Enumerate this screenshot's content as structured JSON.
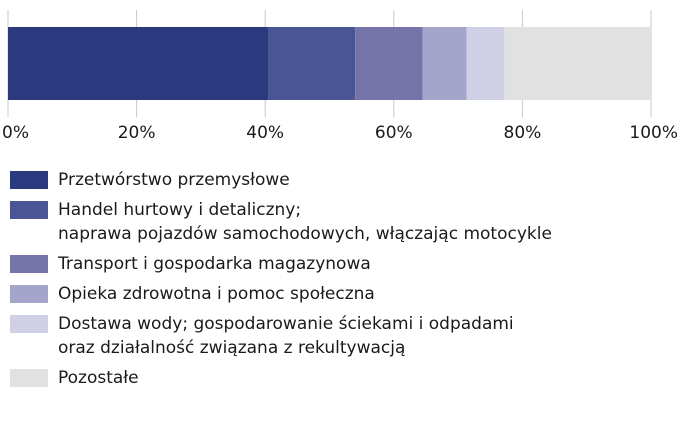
{
  "chart_data": {
    "type": "bar",
    "orientation": "horizontal-stacked-100%",
    "series": [
      {
        "name": "Przetwórstwo przemysłowe",
        "value": 40.5,
        "color": "#2b3a7f"
      },
      {
        "name": "Handel hurtowy i detaliczny;\nnaprawa pojazdów samochodowych, włączając motocykle",
        "value": 13.5,
        "color": "#4a5596"
      },
      {
        "name": "Transport i gospodarka magazynowa",
        "value": 10.5,
        "color": "#7474a8"
      },
      {
        "name": "Opieka zdrowotna i pomoc społeczna",
        "value": 6.8,
        "color": "#a5a5cc"
      },
      {
        "name": "Dostawa wody; gospodarowanie ściekami i odpadami\noraz działalność związana z rekultywacją",
        "value": 5.9,
        "color": "#cfcfe6"
      },
      {
        "name": "Pozostałe",
        "value": 22.8,
        "color": "#e1e1e1"
      }
    ],
    "xlim": [
      0,
      100
    ],
    "xticks": [
      "0%",
      "20%",
      "40%",
      "60%",
      "80%",
      "100%"
    ],
    "grid": true,
    "legend_position": "bottom"
  }
}
